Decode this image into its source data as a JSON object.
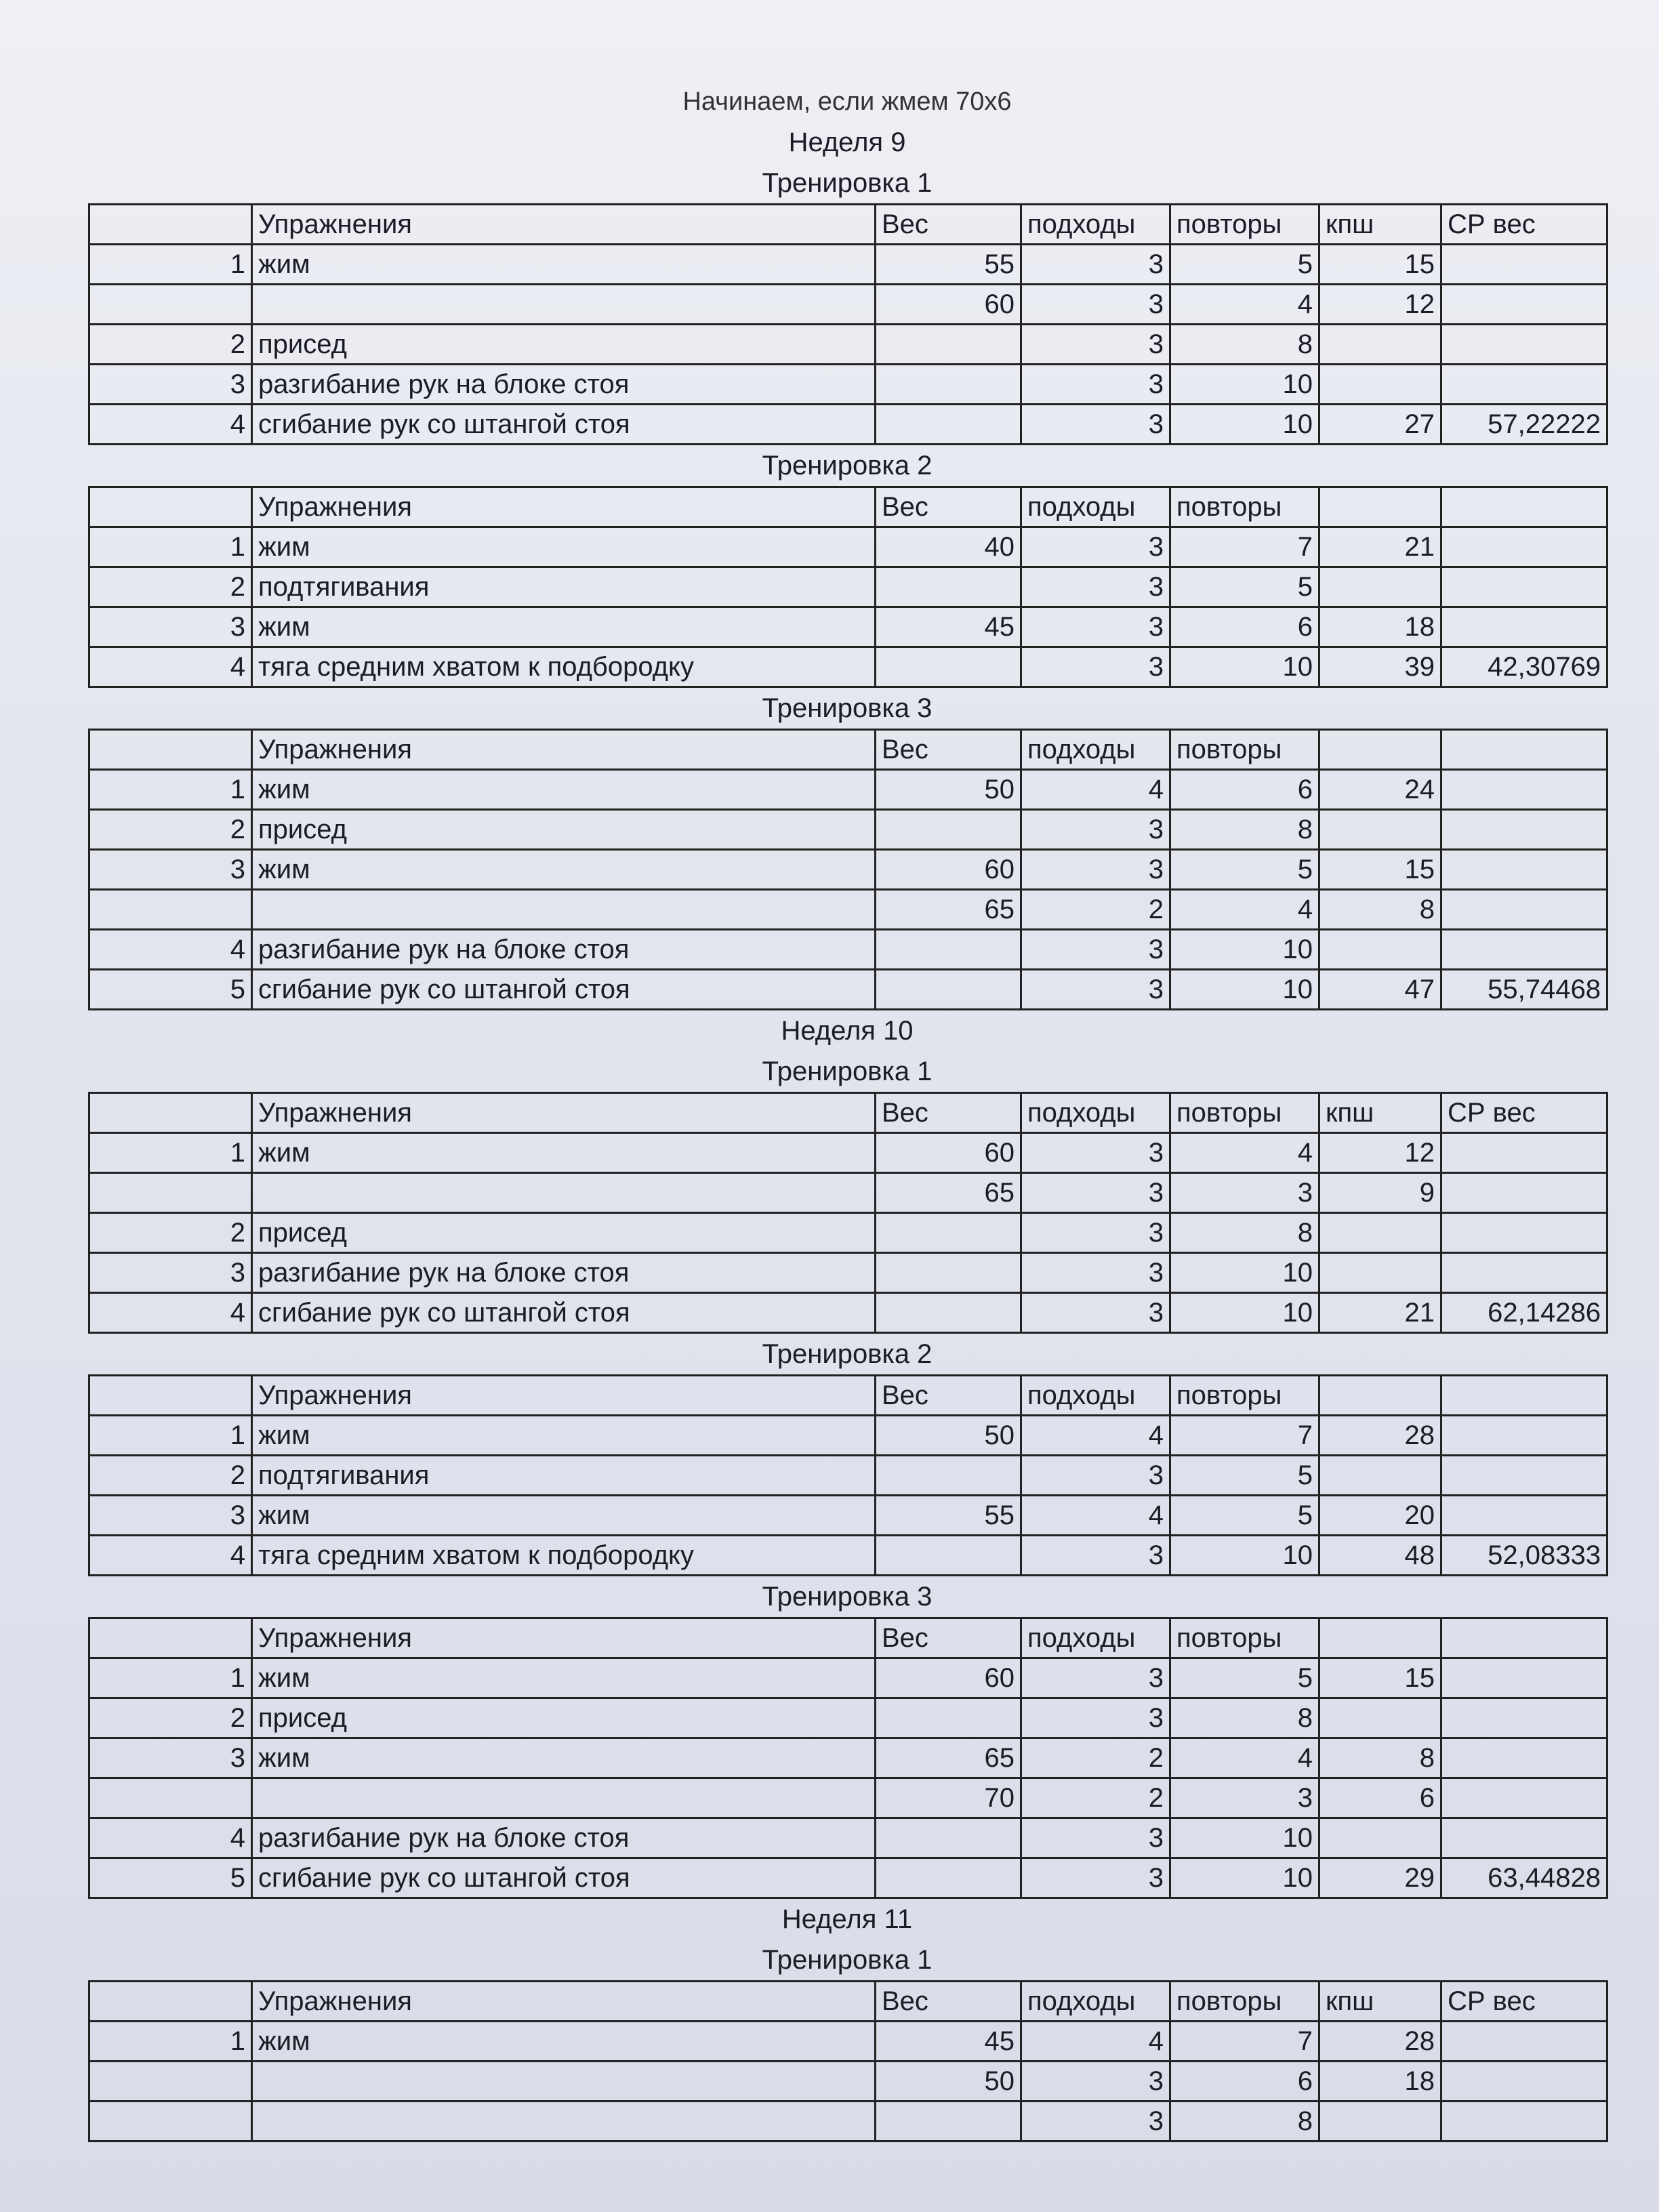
{
  "document": {
    "title": "Начинаем, если жмем 70х6",
    "sections": [
      {
        "week": "Неделя 9",
        "workouts": [
          {
            "label": "Тренировка 1",
            "header": [
              "",
              "Упражнения",
              "Вес",
              "подходы",
              "повторы",
              "кпш",
              "СР вес"
            ],
            "rows": [
              [
                "1",
                "жим",
                "55",
                "3",
                "5",
                "15",
                ""
              ],
              [
                "",
                "",
                "60",
                "3",
                "4",
                "12",
                ""
              ],
              [
                "2",
                "присед",
                "",
                "3",
                "8",
                "",
                ""
              ],
              [
                "3",
                "разгибание рук на блоке стоя",
                "",
                "3",
                "10",
                "",
                ""
              ],
              [
                "4",
                "сгибание рук со штангой стоя",
                "",
                "3",
                "10",
                "27",
                "57,22222"
              ]
            ]
          },
          {
            "label": "Тренировка 2",
            "header": [
              "",
              "Упражнения",
              "Вес",
              "подходы",
              "повторы",
              "",
              ""
            ],
            "rows": [
              [
                "1",
                "жим",
                "40",
                "3",
                "7",
                "21",
                ""
              ],
              [
                "2",
                "подтягивания",
                "",
                "3",
                "5",
                "",
                ""
              ],
              [
                "3",
                "жим",
                "45",
                "3",
                "6",
                "18",
                ""
              ],
              [
                "4",
                "тяга средним хватом к подбородку",
                "",
                "3",
                "10",
                "39",
                "42,30769"
              ]
            ]
          },
          {
            "label": "Тренировка 3",
            "header": [
              "",
              "Упражнения",
              "Вес",
              "подходы",
              "повторы",
              "",
              ""
            ],
            "rows": [
              [
                "1",
                "жим",
                "50",
                "4",
                "6",
                "24",
                ""
              ],
              [
                "2",
                "присед",
                "",
                "3",
                "8",
                "",
                ""
              ],
              [
                "3",
                "жим",
                "60",
                "3",
                "5",
                "15",
                ""
              ],
              [
                "",
                "",
                "65",
                "2",
                "4",
                "8",
                ""
              ],
              [
                "4",
                "разгибание рук на блоке стоя",
                "",
                "3",
                "10",
                "",
                ""
              ],
              [
                "5",
                "сгибание рук со штангой стоя",
                "",
                "3",
                "10",
                "47",
                "55,74468"
              ]
            ]
          }
        ]
      },
      {
        "week": "Неделя 10",
        "workouts": [
          {
            "label": "Тренировка 1",
            "header": [
              "",
              "Упражнения",
              "Вес",
              "подходы",
              "повторы",
              "кпш",
              "СР вес"
            ],
            "rows": [
              [
                "1",
                "жим",
                "60",
                "3",
                "4",
                "12",
                ""
              ],
              [
                "",
                "",
                "65",
                "3",
                "3",
                "9",
                ""
              ],
              [
                "2",
                "присед",
                "",
                "3",
                "8",
                "",
                ""
              ],
              [
                "3",
                "разгибание рук на блоке стоя",
                "",
                "3",
                "10",
                "",
                ""
              ],
              [
                "4",
                "сгибание рук со штангой стоя",
                "",
                "3",
                "10",
                "21",
                "62,14286"
              ]
            ]
          },
          {
            "label": "Тренировка 2",
            "header": [
              "",
              "Упражнения",
              "Вес",
              "подходы",
              "повторы",
              "",
              ""
            ],
            "rows": [
              [
                "1",
                "жим",
                "50",
                "4",
                "7",
                "28",
                ""
              ],
              [
                "2",
                "подтягивания",
                "",
                "3",
                "5",
                "",
                ""
              ],
              [
                "3",
                "жим",
                "55",
                "4",
                "5",
                "20",
                ""
              ],
              [
                "4",
                "тяга средним хватом к подбородку",
                "",
                "3",
                "10",
                "48",
                "52,08333"
              ]
            ]
          },
          {
            "label": "Тренировка 3",
            "header": [
              "",
              "Упражнения",
              "Вес",
              "подходы",
              "повторы",
              "",
              ""
            ],
            "rows": [
              [
                "1",
                "жим",
                "60",
                "3",
                "5",
                "15",
                ""
              ],
              [
                "2",
                "присед",
                "",
                "3",
                "8",
                "",
                ""
              ],
              [
                "3",
                "жим",
                "65",
                "2",
                "4",
                "8",
                ""
              ],
              [
                "",
                "",
                "70",
                "2",
                "3",
                "6",
                ""
              ],
              [
                "4",
                "разгибание рук на блоке стоя",
                "",
                "3",
                "10",
                "",
                ""
              ],
              [
                "5",
                "сгибание рук со штангой стоя",
                "",
                "3",
                "10",
                "29",
                "63,44828"
              ]
            ]
          }
        ]
      },
      {
        "week": "Неделя 11",
        "workouts": [
          {
            "label": "Тренировка 1",
            "header": [
              "",
              "Упражнения",
              "Вес",
              "подходы",
              "повторы",
              "кпш",
              "СР вес"
            ],
            "rows": [
              [
                "1",
                "жим",
                "45",
                "4",
                "7",
                "28",
                ""
              ],
              [
                "",
                "",
                "50",
                "3",
                "6",
                "18",
                ""
              ],
              [
                "",
                "",
                "",
                "3",
                "8",
                "",
                ""
              ]
            ]
          }
        ]
      }
    ]
  }
}
